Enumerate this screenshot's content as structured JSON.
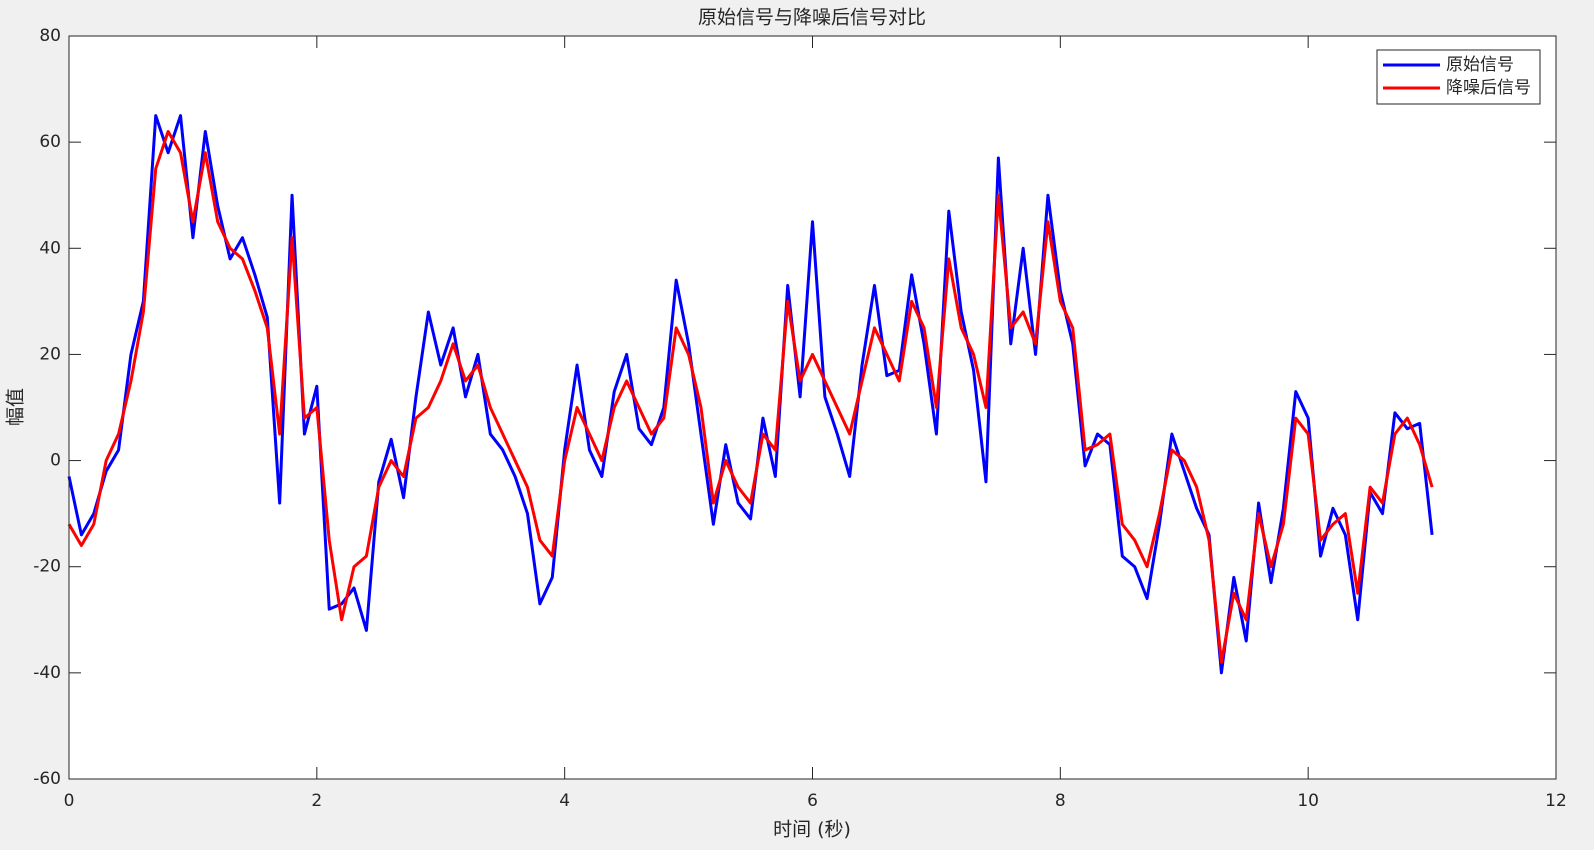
{
  "chart_data": {
    "type": "line",
    "title": "原始信号与降噪后信号对比",
    "x_label": "时间 (秒)",
    "y_label": "幅值",
    "x": [
      0,
      0.1,
      0.2,
      0.3,
      0.4,
      0.5,
      0.6,
      0.7,
      0.8,
      0.9,
      1,
      1.1,
      1.2,
      1.3,
      1.4,
      1.5,
      1.6,
      1.7,
      1.8,
      1.9,
      2,
      2.1,
      2.2,
      2.3,
      2.4,
      2.5,
      2.6,
      2.7,
      2.8,
      2.9,
      3,
      3.1,
      3.2,
      3.3,
      3.4,
      3.5,
      3.6,
      3.7,
      3.8,
      3.9,
      4,
      4.1,
      4.2,
      4.3,
      4.4,
      4.5,
      4.6,
      4.7,
      4.8,
      4.9,
      5,
      5.1,
      5.2,
      5.3,
      5.4,
      5.5,
      5.6,
      5.7,
      5.8,
      5.9,
      6,
      6.1,
      6.2,
      6.3,
      6.4,
      6.5,
      6.6,
      6.7,
      6.8,
      6.9,
      7,
      7.1,
      7.2,
      7.3,
      7.4,
      7.5,
      7.6,
      7.7,
      7.8,
      7.9,
      8,
      8.1,
      8.2,
      8.3,
      8.4,
      8.5,
      8.6,
      8.7,
      8.8,
      8.9,
      9,
      9.1,
      9.2,
      9.3,
      9.4,
      9.5,
      9.6,
      9.7,
      9.8,
      9.9,
      10,
      10.1,
      10.2,
      10.3,
      10.4,
      10.5,
      10.6,
      10.7,
      10.8,
      10.9,
      11
    ],
    "series": [
      {
        "name": "原始信号",
        "color": "#0000ff",
        "values": [
          -3,
          -14,
          -10,
          -2,
          2,
          20,
          30,
          65,
          58,
          65,
          42,
          62,
          48,
          38,
          42,
          35,
          27,
          -8,
          50,
          5,
          14,
          -28,
          -27,
          -24,
          -32,
          -4,
          4,
          -7,
          12,
          28,
          18,
          25,
          12,
          20,
          5,
          2,
          -3,
          -10,
          -27,
          -22,
          2,
          18,
          2,
          -3,
          13,
          20,
          6,
          3,
          10,
          34,
          22,
          5,
          -12,
          3,
          -8,
          -11,
          8,
          -3,
          33,
          12,
          45,
          12,
          5,
          -3,
          18,
          33,
          16,
          17,
          35,
          22,
          5,
          47,
          28,
          17,
          -4,
          57,
          22,
          40,
          20,
          50,
          32,
          22,
          -1,
          5,
          3,
          -18,
          -20,
          -26,
          -12,
          5,
          -2,
          -9,
          -14,
          -40,
          -22,
          -34,
          -8,
          -23,
          -9,
          13,
          8,
          -18,
          -9,
          -14,
          -30,
          -6,
          -10,
          9,
          6,
          7,
          -14
        ]
      },
      {
        "name": "降噪后信号",
        "color": "#ff0000",
        "values": [
          -12,
          -16,
          -12,
          0,
          5,
          15,
          28,
          55,
          62,
          58,
          45,
          58,
          45,
          40,
          38,
          32,
          25,
          5,
          42,
          8,
          10,
          -15,
          -30,
          -20,
          -18,
          -5,
          0,
          -3,
          8,
          10,
          15,
          22,
          15,
          18,
          10,
          5,
          0,
          -5,
          -15,
          -18,
          0,
          10,
          5,
          0,
          10,
          15,
          10,
          5,
          8,
          25,
          20,
          10,
          -8,
          0,
          -5,
          -8,
          5,
          2,
          30,
          15,
          20,
          15,
          10,
          5,
          15,
          25,
          20,
          15,
          30,
          25,
          10,
          38,
          25,
          20,
          10,
          50,
          25,
          28,
          22,
          45,
          30,
          25,
          2,
          3,
          5,
          -12,
          -15,
          -20,
          -10,
          2,
          0,
          -5,
          -15,
          -38,
          -25,
          -30,
          -10,
          -20,
          -12,
          8,
          5,
          -15,
          -12,
          -10,
          -25,
          -5,
          -8,
          5,
          8,
          3,
          -5
        ]
      }
    ],
    "xlim": [
      0,
      12
    ],
    "xticks": [
      0,
      2,
      4,
      6,
      8,
      10,
      12
    ],
    "ylim": [
      -60,
      80
    ],
    "yticks": [
      -60,
      -40,
      -20,
      0,
      20,
      40,
      60,
      80
    ],
    "grid": false,
    "legend": "upper right"
  }
}
